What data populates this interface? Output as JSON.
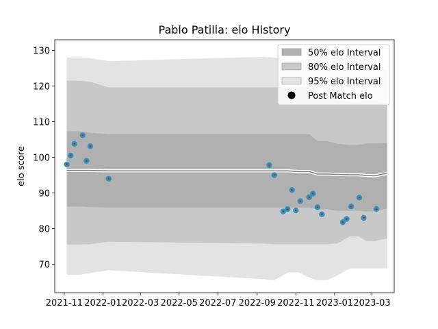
{
  "chart_data": {
    "type": "line",
    "title": "Pablo Patilla: elo History",
    "xlabel": "",
    "ylabel": "elo score",
    "xlim": [
      "2021-10-17",
      "2023-04-05"
    ],
    "ylim": [
      62,
      133
    ],
    "x_ticks": [
      "2021-11",
      "2022-01",
      "2022-03",
      "2022-05",
      "2022-07",
      "2022-09",
      "2022-11",
      "2023-01",
      "2023-03"
    ],
    "y_ticks": [
      70,
      80,
      90,
      100,
      110,
      120,
      130
    ],
    "grid": false,
    "legend_position": "top-right",
    "colors": {
      "band_50": "#b0b0b0",
      "band_80": "#c8c8c8",
      "band_95": "#e3e3e3",
      "mean_line": "#808080",
      "mean_outline": "#ffffff",
      "marker_fill": "#1f9bc8",
      "marker_center": "#d62728",
      "legend_marker": "#000000"
    },
    "legend": [
      {
        "label": "50% elo Interval",
        "kind": "band_50"
      },
      {
        "label": "80% elo Interval",
        "kind": "band_80"
      },
      {
        "label": "95% elo Interval",
        "kind": "band_95"
      },
      {
        "label": "Post Match elo",
        "kind": "marker"
      }
    ],
    "series": [
      {
        "kind": "interval_bands",
        "x": [
          "2021-11-05",
          "2021-11-25",
          "2021-12-12",
          "2022-01-10",
          "2022-09-10",
          "2022-09-28",
          "2022-10-20",
          "2022-11-05",
          "2022-11-22",
          "2022-12-05",
          "2022-12-20",
          "2023-01-05",
          "2023-01-25",
          "2023-02-08",
          "2023-02-20",
          "2023-03-05",
          "2023-03-25"
        ],
        "mean": [
          96.3,
          96.3,
          96.3,
          96.2,
          96.2,
          96.2,
          96.2,
          96.0,
          96.0,
          95.3,
          95.3,
          95.2,
          95.1,
          95.1,
          94.9,
          94.8,
          95.5
        ],
        "p50_low": [
          86.2,
          86.2,
          86.0,
          85.9,
          85.9,
          85.9,
          85.9,
          85.9,
          85.9,
          85.4,
          85.4,
          85.0,
          85.0,
          85.0,
          84.8,
          84.8,
          85.6
        ],
        "p50_high": [
          107.3,
          107.3,
          106.9,
          106.5,
          106.5,
          106.5,
          106.5,
          106.5,
          106.5,
          104.6,
          104.6,
          103.8,
          103.5,
          103.5,
          103.9,
          103.9,
          104.0
        ],
        "p80_low": [
          75.5,
          75.5,
          75.6,
          76.3,
          75.8,
          75.6,
          75.6,
          75.6,
          75.6,
          75.6,
          75.6,
          75.8,
          77.8,
          77.8,
          76.5,
          76.5,
          77.2
        ],
        "p80_high": [
          121.5,
          121.5,
          121.2,
          119.6,
          119.6,
          119.6,
          119.6,
          119.6,
          119.6,
          118.0,
          118.0,
          116.2,
          115.5,
          115.5,
          116.0,
          116.0,
          115.0
        ],
        "p95_low": [
          67.0,
          67.0,
          67.5,
          68.3,
          65.8,
          65.5,
          67.7,
          67.7,
          66.3,
          65.5,
          65.5,
          66.8,
          68.8,
          68.8,
          68.8,
          68.8,
          68.8
        ],
        "p95_high": [
          128.0,
          128.0,
          127.8,
          127.0,
          128.2,
          128.0,
          127.5,
          127.5,
          126.5,
          126.0,
          126.0,
          125.0,
          124.5,
          124.5,
          124.5,
          124.5,
          124.5
        ]
      },
      {
        "name": "Post Match elo",
        "kind": "scatter",
        "points": [
          {
            "x": "2021-11-05",
            "y": 98.0
          },
          {
            "x": "2021-11-11",
            "y": 100.5
          },
          {
            "x": "2021-11-17",
            "y": 103.8
          },
          {
            "x": "2021-11-30",
            "y": 106.2
          },
          {
            "x": "2021-12-06",
            "y": 99.0
          },
          {
            "x": "2021-12-12",
            "y": 103.1
          },
          {
            "x": "2022-01-10",
            "y": 94.0
          },
          {
            "x": "2022-09-20",
            "y": 97.8
          },
          {
            "x": "2022-09-28",
            "y": 95.0
          },
          {
            "x": "2022-10-12",
            "y": 84.8
          },
          {
            "x": "2022-10-19",
            "y": 85.5
          },
          {
            "x": "2022-10-26",
            "y": 90.8
          },
          {
            "x": "2022-11-01",
            "y": 85.1
          },
          {
            "x": "2022-11-08",
            "y": 87.7
          },
          {
            "x": "2022-11-22",
            "y": 88.8
          },
          {
            "x": "2022-11-28",
            "y": 89.8
          },
          {
            "x": "2022-12-05",
            "y": 86.0
          },
          {
            "x": "2022-12-12",
            "y": 84.0
          },
          {
            "x": "2023-01-14",
            "y": 81.8
          },
          {
            "x": "2023-01-20",
            "y": 82.7
          },
          {
            "x": "2023-01-27",
            "y": 86.2
          },
          {
            "x": "2023-02-09",
            "y": 88.7
          },
          {
            "x": "2023-02-16",
            "y": 83.0
          },
          {
            "x": "2023-03-08",
            "y": 85.5
          }
        ]
      }
    ]
  }
}
